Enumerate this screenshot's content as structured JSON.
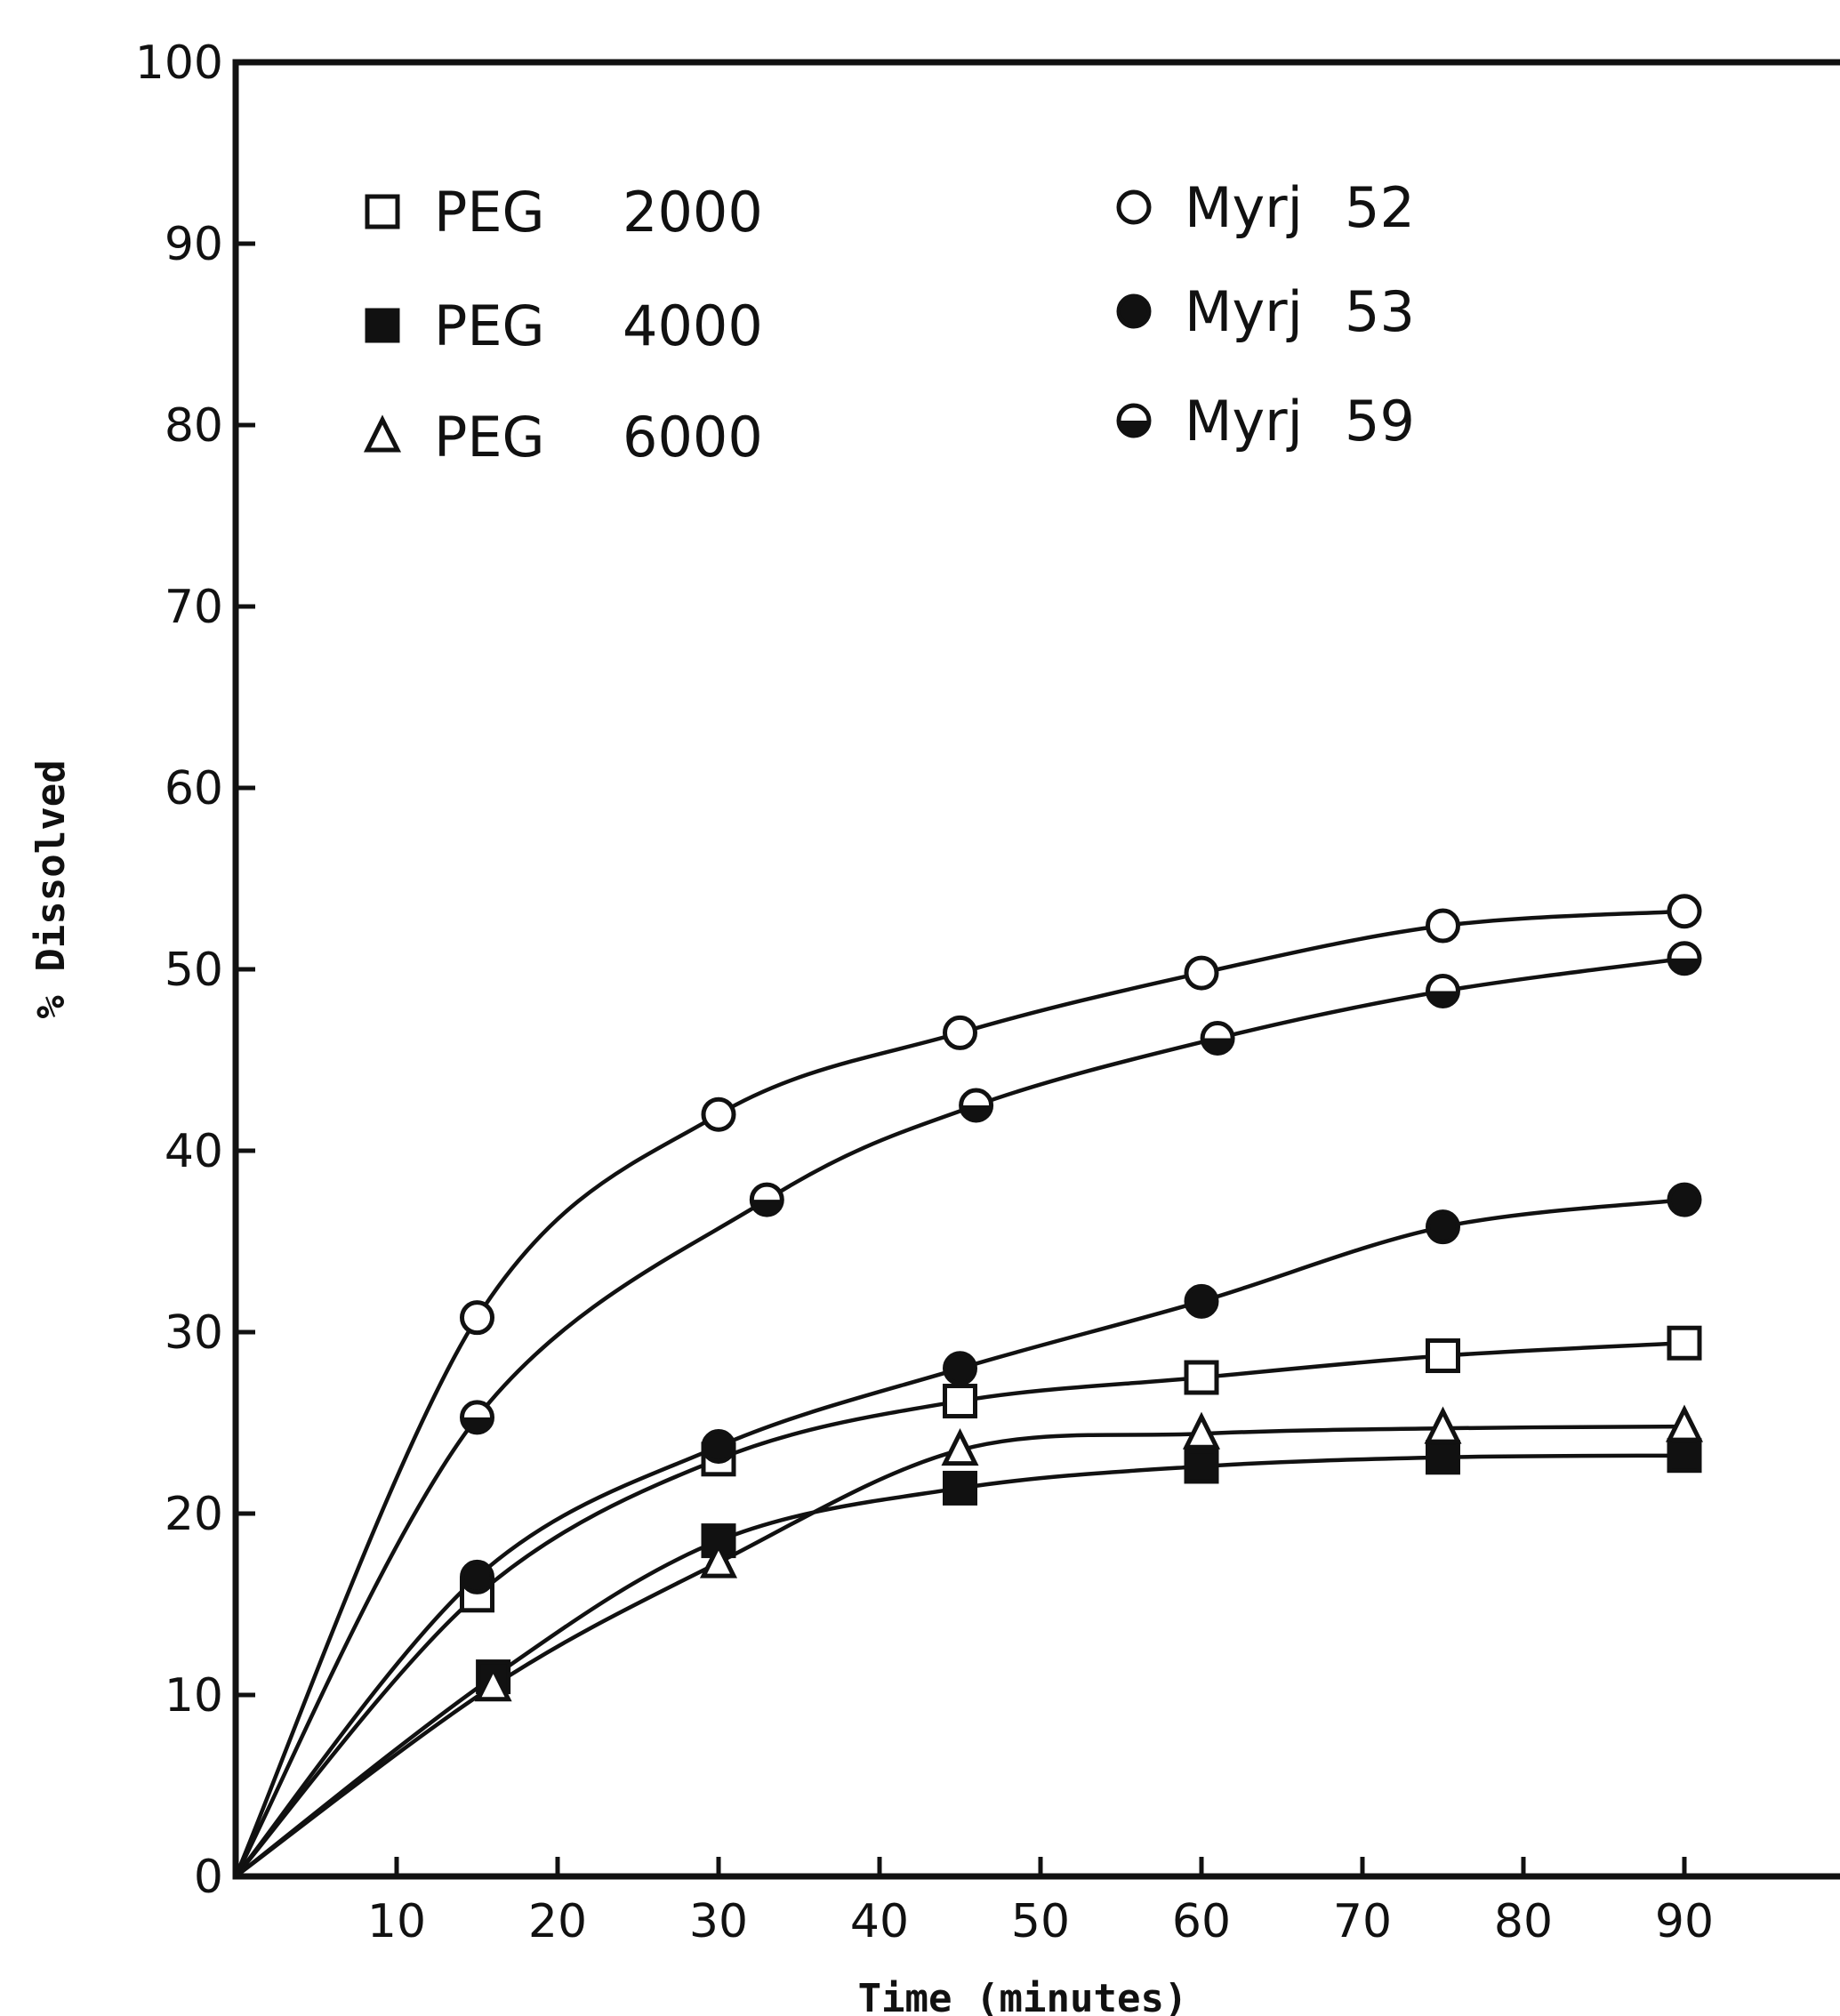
{
  "chart_data": {
    "type": "line",
    "title": "",
    "xlabel": "Time (minutes)",
    "ylabel": "% Dissolved",
    "xlim": [
      0,
      100
    ],
    "ylim": [
      0,
      100
    ],
    "x_ticks": [
      10,
      20,
      30,
      40,
      50,
      60,
      70,
      80,
      90
    ],
    "y_ticks": [
      0,
      10,
      20,
      30,
      40,
      50,
      60,
      70,
      80,
      90,
      100
    ],
    "grid": false,
    "legend_position": "top",
    "series": [
      {
        "name": "PEG 2000",
        "marker": "open-square",
        "x": [
          0,
          15,
          30,
          45,
          60,
          75,
          90
        ],
        "y": [
          0,
          15.5,
          23,
          26.2,
          27.5,
          28.7,
          29.4
        ]
      },
      {
        "name": "PEG 4000",
        "marker": "filled-square",
        "x": [
          0,
          16,
          30,
          45,
          60,
          75,
          90
        ],
        "y": [
          0,
          11,
          18.5,
          21.4,
          22.6,
          23.1,
          23.2
        ]
      },
      {
        "name": "PEG 6000",
        "marker": "open-triangle",
        "x": [
          0,
          16,
          30,
          45,
          60,
          75,
          90
        ],
        "y": [
          0,
          10.5,
          17.3,
          23.5,
          24.4,
          24.7,
          24.8
        ]
      },
      {
        "name": "Myrj 52",
        "marker": "open-circle",
        "x": [
          0,
          15,
          30,
          45,
          60,
          75,
          90
        ],
        "y": [
          0,
          30.8,
          42,
          46.5,
          49.8,
          52.4,
          53.2
        ]
      },
      {
        "name": "Myrj 53",
        "marker": "filled-circle",
        "x": [
          0,
          15,
          30,
          45,
          60,
          75,
          90
        ],
        "y": [
          0,
          16.5,
          23.7,
          28,
          31.7,
          35.8,
          37.3
        ]
      },
      {
        "name": "Myrj 59",
        "marker": "half-circle",
        "x": [
          0,
          15,
          33,
          46,
          61,
          75,
          90
        ],
        "y": [
          0,
          25.3,
          37.3,
          42.5,
          46.2,
          48.8,
          50.6
        ]
      }
    ]
  },
  "legend_left": [
    {
      "label": "PEG",
      "value": "2000",
      "marker": "open-square"
    },
    {
      "label": "PEG",
      "value": "4000",
      "marker": "filled-square"
    },
    {
      "label": "PEG",
      "value": "6000",
      "marker": "open-triangle"
    }
  ],
  "legend_right": [
    {
      "label": "Myrj",
      "value": "52",
      "marker": "open-circle"
    },
    {
      "label": "Myrj",
      "value": "53",
      "marker": "filled-circle"
    },
    {
      "label": "Myrj",
      "value": "59",
      "marker": "half-circle"
    }
  ],
  "colors": {
    "ink": "#111111",
    "background": "#ffffff"
  }
}
